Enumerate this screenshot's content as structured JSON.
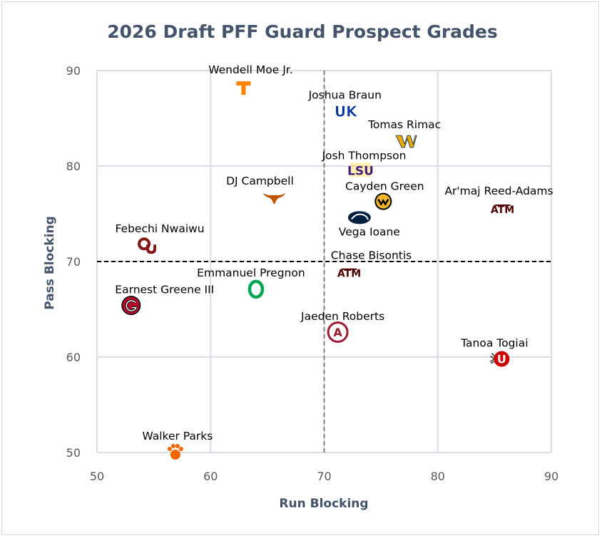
{
  "chart_data": {
    "type": "scatter",
    "title": "2026 Draft PFF Guard Prospect Grades",
    "xlabel": "Run Blocking",
    "ylabel": "Pass Blocking",
    "xlim": [
      50,
      90
    ],
    "ylim": [
      50,
      90
    ],
    "xticks": [
      "50",
      "60",
      "70",
      "80",
      "90"
    ],
    "yticks": [
      "50",
      "60",
      "70",
      "80",
      "90"
    ],
    "grid": true,
    "reference_lines": {
      "x": 70,
      "y": 70
    },
    "points": [
      {
        "name": "Wendell Moe Jr.",
        "team": "Tennessee",
        "logo": "tennessee-logo",
        "x": 62.9,
        "y": 88.2,
        "color": "#ff8200"
      },
      {
        "name": "Joshua Braun",
        "team": "Kentucky",
        "logo": "kentucky-logo",
        "x": 71.9,
        "y": 85.8,
        "color": "#0033a0"
      },
      {
        "name": "Tomas Rimac",
        "team": "West Virginia",
        "logo": "west-virginia-logo",
        "x": 77.2,
        "y": 82.6,
        "color": "#eaaa00"
      },
      {
        "name": "Josh Thompson",
        "team": "LSU",
        "logo": "lsu-logo",
        "x": 73.2,
        "y": 79.6,
        "color": "#461d7c"
      },
      {
        "name": "DJ Campbell",
        "team": "Texas",
        "logo": "texas-logo",
        "x": 65.6,
        "y": 76.8,
        "color": "#bf5700"
      },
      {
        "name": "Cayden Green",
        "team": "Missouri",
        "logo": "missouri-logo",
        "x": 75.2,
        "y": 76.3,
        "color": "#f1b82d"
      },
      {
        "name": "Ar'maj Reed-Adams",
        "team": "Texas A&M",
        "logo": "texas-am-logo",
        "x": 85.7,
        "y": 75.6,
        "color": "#500000"
      },
      {
        "name": "Vega Ioane",
        "team": "Penn State",
        "logo": "penn-state-logo",
        "x": 73.1,
        "y": 74.6,
        "color": "#041e42"
      },
      {
        "name": "Febechi Nwaiwu",
        "team": "Oklahoma",
        "logo": "oklahoma-logo",
        "x": 54.4,
        "y": 71.7,
        "color": "#841617"
      },
      {
        "name": "Chase Bisontis",
        "team": "Texas A&M",
        "logo": "texas-am-logo",
        "x": 72.2,
        "y": 68.9,
        "color": "#500000"
      },
      {
        "name": "Emmanuel Pregnon",
        "team": "Oregon",
        "logo": "oregon-logo",
        "x": 64.0,
        "y": 67.1,
        "color": "#154733"
      },
      {
        "name": "Earnest Greene III",
        "team": "Georgia",
        "logo": "georgia-logo",
        "x": 53.0,
        "y": 65.4,
        "color": "#ba0c2f"
      },
      {
        "name": "Jaeden Roberts",
        "team": "Alabama",
        "logo": "alabama-logo",
        "x": 71.2,
        "y": 62.6,
        "color": "#9e1b32"
      },
      {
        "name": "Tanoa Togiai",
        "team": "Utah",
        "logo": "utah-logo",
        "x": 85.5,
        "y": 59.8,
        "color": "#cc0000"
      },
      {
        "name": "Walker Parks",
        "team": "Clemson",
        "logo": "clemson-logo",
        "x": 56.9,
        "y": 50.0,
        "color": "#f56600"
      }
    ]
  },
  "colors": {
    "title": "#44546a",
    "grid": "#d9dde5",
    "reference_line": "#000000",
    "reference_line_x": "#7f7f7f"
  }
}
